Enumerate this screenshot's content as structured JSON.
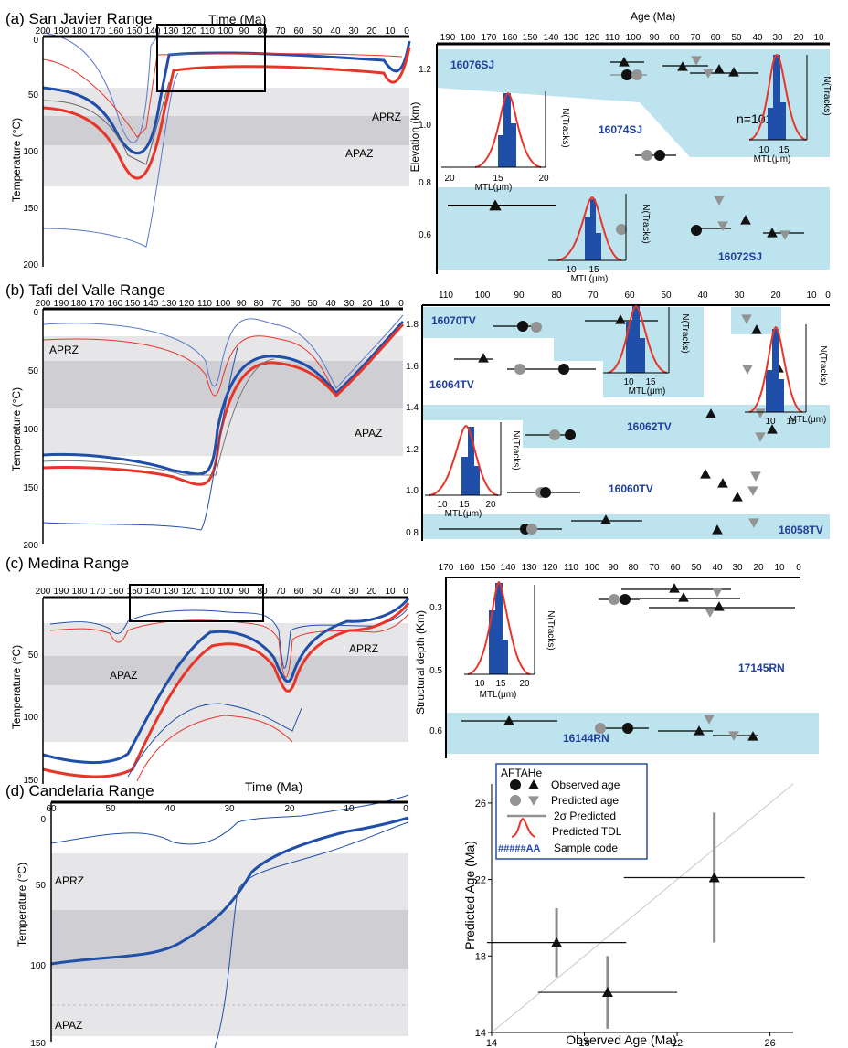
{
  "colors": {
    "blue": "#1f4fa8",
    "red": "#e8352a",
    "zone_light": "#e6e6e8",
    "zone_dark": "#cfcfd3",
    "sample_band": "#bde4ee",
    "observed": "#1a1a1a",
    "predicted": "#939393",
    "tdl": "#e8352a",
    "sample_code": "#1f3f9a"
  },
  "panels": [
    {
      "key": "a",
      "title": "(a) San Javier Range",
      "axis_title": "Time (Ma)",
      "ylabel": "Temperature (°C)",
      "xlim": [
        200,
        0
      ],
      "ylim": [
        0,
        200
      ],
      "xticks": [
        "200",
        "190",
        "180",
        "170",
        "160",
        "150",
        "140",
        "130",
        "120",
        "110",
        "100",
        "90",
        "80",
        "70",
        "60",
        "50",
        "40",
        "30",
        "20",
        "10",
        "0"
      ],
      "yticks": [
        "0",
        "50",
        "100",
        "150",
        "200"
      ],
      "zone_labels": [
        "APRZ",
        "APAZ"
      ]
    },
    {
      "key": "b",
      "title": "(b) Tafi del Valle Range",
      "axis_title": "",
      "ylabel": "Temperature (°C)",
      "xlim": [
        200,
        0
      ],
      "ylim": [
        0,
        200
      ],
      "xticks": [
        "200",
        "190",
        "180",
        "170",
        "160",
        "150",
        "140",
        "130",
        "120",
        "110",
        "100",
        "90",
        "80",
        "70",
        "60",
        "50",
        "40",
        "30",
        "20",
        "10",
        "0"
      ],
      "yticks": [
        "0",
        "50",
        "100",
        "150",
        "200"
      ],
      "zone_labels": [
        "APRZ",
        "APAZ"
      ]
    },
    {
      "key": "c",
      "title": "(c) Medina Range",
      "axis_title": "",
      "ylabel": "Temperature (°C)",
      "xlim": [
        200,
        0
      ],
      "ylim": [
        0,
        150
      ],
      "xticks": [
        "200",
        "190",
        "180",
        "170",
        "160",
        "150",
        "140",
        "130",
        "120",
        "110",
        "100",
        "90",
        "80",
        "70",
        "60",
        "50",
        "40",
        "30",
        "20",
        "10",
        "0"
      ],
      "yticks": [
        "50",
        "100",
        "150"
      ],
      "zone_labels": [
        "APRZ",
        "APAZ"
      ]
    },
    {
      "key": "d",
      "title": "(d) Candelaria Range",
      "axis_title": "Time (Ma)",
      "ylabel": "Temperature (°C)",
      "xlim": [
        60,
        0
      ],
      "ylim": [
        0,
        150
      ],
      "xticks": [
        "60",
        "50",
        "40",
        "30",
        "20",
        "10",
        "0"
      ],
      "yticks": [
        "0",
        "50",
        "100",
        "150"
      ],
      "zone_labels": [
        "APRZ",
        "APAZ"
      ]
    }
  ],
  "age_panels": [
    {
      "key": "a",
      "axis_title": "Age (Ma)",
      "ylabel": "Elevation (km)",
      "xticks": [
        "190",
        "180",
        "170",
        "160",
        "150",
        "140",
        "130",
        "120",
        "110",
        "100",
        "90",
        "80",
        "70",
        "60",
        "50",
        "40",
        "30",
        "20",
        "10"
      ],
      "yticks": [
        "1.2",
        "1.0",
        "0.8",
        "0.6"
      ],
      "samples": [
        "16076SJ",
        "16074SJ",
        "16072SJ"
      ],
      "annotation": "n=101"
    },
    {
      "key": "b",
      "axis_title": "",
      "ylabel": "",
      "xticks": [
        "110",
        "100",
        "90",
        "80",
        "70",
        "60",
        "50",
        "40",
        "30",
        "20",
        "10",
        "0"
      ],
      "yticks": [
        "1.8",
        "1.6",
        "1.4",
        "1.2",
        "1.0",
        "0.8"
      ],
      "samples": [
        "16070TV",
        "16064TV",
        "16062TV",
        "16060TV",
        "16058TV"
      ]
    },
    {
      "key": "c",
      "axis_title": "",
      "ylabel": "Structural depth (Km)",
      "xticks": [
        "170",
        "160",
        "150",
        "140",
        "130",
        "120",
        "110",
        "100",
        "90",
        "80",
        "70",
        "60",
        "50",
        "40",
        "30",
        "20",
        "10",
        "0"
      ],
      "yticks": [
        "0.3",
        "0.5",
        "0.6"
      ],
      "samples": [
        "17145RN",
        "16144RN"
      ]
    }
  ],
  "histogram": {
    "xlabel": "MTL(μm)",
    "ylabel": "N(Tracks)",
    "xticks": [
      "10",
      "15",
      "20"
    ],
    "xticks_wide": [
      "20",
      "15",
      "20"
    ]
  },
  "legend": {
    "header": "AFTAHe",
    "items": [
      "Observed age",
      "Predicted age",
      "2σ Predicted",
      "Predicted TDL",
      "Sample code"
    ],
    "sample_code_glyph": "#####AA"
  },
  "chart_data": {
    "type": "scatter",
    "title": "",
    "xlabel": "Observed Age  (Ma)",
    "ylabel": "Predicted Age  (Ma)",
    "xlim": [
      14,
      27
    ],
    "ylim": [
      14,
      27
    ],
    "xticks": [
      "14",
      "18",
      "22",
      "26"
    ],
    "yticks": [
      "14",
      "18",
      "22",
      "26"
    ],
    "line": "1:1",
    "grid": false,
    "points": [
      {
        "x": 16.8,
        "y": 18.7,
        "x_err": 3.0,
        "y_err": 1.8
      },
      {
        "x": 19.0,
        "y": 16.1,
        "x_err": 3.0,
        "y_err": 1.9
      },
      {
        "x": 23.6,
        "y": 22.1,
        "x_err": 3.9,
        "y_err": 3.4
      }
    ]
  }
}
